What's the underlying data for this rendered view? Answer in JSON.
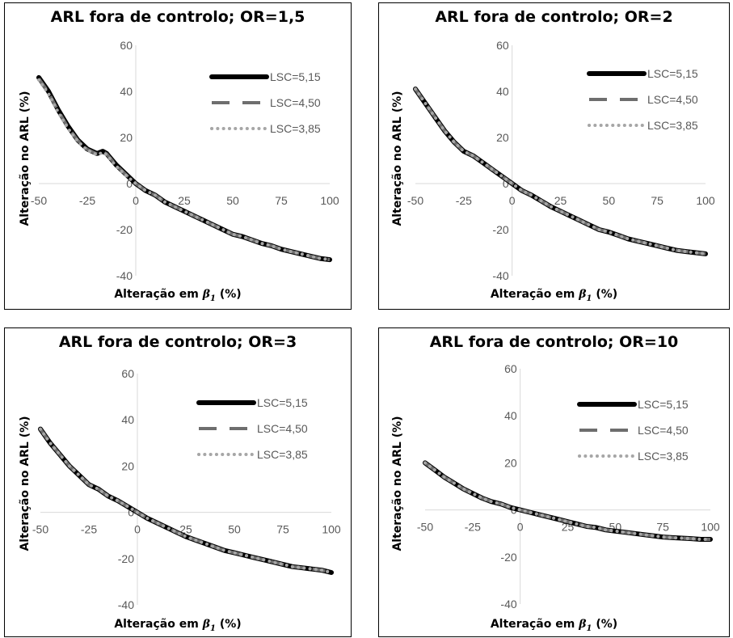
{
  "chart_data": [
    {
      "type": "line",
      "title": "ARL fora de controlo; OR=1,5",
      "xlabel": "Alteração em β1 (%)",
      "ylabel": "Alteração no ARL (%)",
      "xlim": [
        -50,
        100
      ],
      "ylim": [
        -40,
        60
      ],
      "x_ticks": [
        "-50",
        "-25",
        "0",
        "25",
        "50",
        "75",
        "100"
      ],
      "y_ticks": [
        "60",
        "40",
        "20",
        "0",
        "-20",
        "-40"
      ],
      "legend_position": "right",
      "x": [
        -50,
        -45,
        -40,
        -35,
        -30,
        -25,
        -20,
        -17,
        -15,
        -13,
        -10,
        -5,
        0,
        5,
        10,
        15,
        20,
        25,
        30,
        35,
        40,
        45,
        50,
        55,
        60,
        65,
        70,
        75,
        80,
        85,
        90,
        95,
        100
      ],
      "series": [
        {
          "name": "LSC=5,15",
          "values": [
            46,
            40,
            32,
            25,
            19,
            15,
            13,
            14,
            13,
            11,
            8,
            4,
            0,
            -3,
            -5,
            -8,
            -10,
            -12,
            -14,
            -16,
            -18,
            -20,
            -22,
            -23,
            -24.5,
            -26,
            -27,
            -28.5,
            -29.5,
            -30.5,
            -31.5,
            -32.5,
            -33
          ]
        },
        {
          "name": "LSC=4,50",
          "values": [
            45.5,
            39.5,
            31.5,
            24.5,
            18.8,
            14.8,
            12.8,
            13.8,
            12.8,
            10.8,
            7.8,
            3.8,
            0,
            -3,
            -5,
            -8,
            -10,
            -12,
            -14,
            -16,
            -18,
            -20,
            -22,
            -23,
            -24.5,
            -26,
            -27,
            -28.5,
            -29.5,
            -30.5,
            -31.5,
            -32.5,
            -33
          ]
        },
        {
          "name": "LSC=3,85",
          "values": [
            45,
            39,
            31,
            24,
            18.5,
            14.5,
            12.5,
            13.5,
            12.5,
            10.5,
            7.5,
            3.5,
            0,
            -3,
            -5,
            -8,
            -10,
            -12,
            -14,
            -16,
            -18,
            -20,
            -22,
            -23,
            -24.5,
            -26,
            -27,
            -28.5,
            -29.5,
            -30.5,
            -31.5,
            -32.5,
            -33
          ]
        }
      ]
    },
    {
      "type": "line",
      "title": "ARL fora de controlo; OR=2",
      "xlabel": "Alteração em β1 (%)",
      "ylabel": "Alteração no ARL (%)",
      "xlim": [
        -50,
        100
      ],
      "ylim": [
        -40,
        60
      ],
      "x_ticks": [
        "-50",
        "-25",
        "0",
        "25",
        "50",
        "75",
        "100"
      ],
      "y_ticks": [
        "60",
        "40",
        "20",
        "0",
        "-20",
        "-40"
      ],
      "legend_position": "right",
      "x": [
        -50,
        -45,
        -40,
        -35,
        -30,
        -25,
        -20,
        -15,
        -10,
        -5,
        0,
        5,
        10,
        15,
        20,
        25,
        30,
        35,
        40,
        45,
        50,
        55,
        60,
        65,
        70,
        75,
        80,
        85,
        90,
        95,
        100
      ],
      "series": [
        {
          "name": "LSC=5,15",
          "values": [
            41,
            35,
            29,
            23,
            18,
            14,
            12,
            9,
            6,
            3,
            0,
            -3,
            -5,
            -7.5,
            -10,
            -12,
            -14,
            -16,
            -18,
            -20,
            -21,
            -22.5,
            -24,
            -25,
            -26,
            -27,
            -28,
            -29,
            -29.5,
            -30,
            -30.5
          ]
        },
        {
          "name": "LSC=4,50",
          "values": [
            41,
            35,
            29,
            23,
            18,
            14,
            12,
            9,
            6,
            3,
            0,
            -3,
            -5,
            -7.5,
            -10,
            -12,
            -14,
            -16,
            -18,
            -20,
            -21,
            -22.5,
            -24,
            -25,
            -26,
            -27,
            -28,
            -29,
            -29.5,
            -30,
            -30.5
          ]
        },
        {
          "name": "LSC=3,85",
          "values": [
            41,
            35,
            29,
            23,
            18,
            14,
            12,
            9,
            6,
            3,
            0,
            -3,
            -5,
            -7.5,
            -10,
            -12,
            -14,
            -16,
            -18,
            -20,
            -21,
            -22.5,
            -24,
            -25,
            -26,
            -27,
            -28,
            -29,
            -29.5,
            -30,
            -30.5
          ]
        }
      ]
    },
    {
      "type": "line",
      "title": "ARL fora de controlo; OR=3",
      "xlabel": "Alteração em β1 (%)",
      "ylabel": "Alteração no ARL (%)",
      "xlim": [
        -50,
        100
      ],
      "ylim": [
        -40,
        60
      ],
      "x_ticks": [
        "-50",
        "-25",
        "0",
        "25",
        "50",
        "75",
        "100"
      ],
      "y_ticks": [
        "60",
        "40",
        "20",
        "0",
        "-20",
        "-40"
      ],
      "legend_position": "right",
      "x": [
        -50,
        -45,
        -40,
        -35,
        -30,
        -25,
        -20,
        -15,
        -10,
        -5,
        0,
        5,
        10,
        15,
        20,
        25,
        30,
        35,
        40,
        45,
        50,
        55,
        60,
        65,
        70,
        75,
        80,
        85,
        90,
        95,
        100
      ],
      "series": [
        {
          "name": "LSC=5,15",
          "values": [
            36,
            30,
            25,
            20,
            16,
            12,
            10,
            7,
            5,
            2.5,
            0,
            -2.5,
            -4.5,
            -6.5,
            -8.5,
            -10.5,
            -12,
            -13.5,
            -15,
            -16.5,
            -17.5,
            -18.5,
            -19.5,
            -20.5,
            -21.5,
            -22.5,
            -23.5,
            -24,
            -24.5,
            -25,
            -26
          ]
        },
        {
          "name": "LSC=4,50",
          "values": [
            36,
            30,
            25,
            20,
            16,
            12,
            10,
            7,
            5,
            2.5,
            0,
            -2.5,
            -4.5,
            -6.5,
            -8.5,
            -10.5,
            -12,
            -13.5,
            -15,
            -16.5,
            -17.5,
            -18.5,
            -19.5,
            -20.5,
            -21.5,
            -22.5,
            -23.5,
            -24,
            -24.5,
            -25,
            -26
          ]
        },
        {
          "name": "LSC=3,85",
          "values": [
            36,
            30,
            25,
            20,
            16,
            12,
            10,
            7,
            5,
            2.5,
            0,
            -2.5,
            -4.5,
            -6.5,
            -8.5,
            -10.5,
            -12,
            -13.5,
            -15,
            -16.5,
            -17.5,
            -18.5,
            -19.5,
            -20.5,
            -21.5,
            -22.5,
            -23.5,
            -24,
            -24.5,
            -25,
            -26
          ]
        }
      ]
    },
    {
      "type": "line",
      "title": "ARL fora de controlo; OR=10",
      "xlabel": "Alteração em β1 (%)",
      "ylabel": "Alteração no ARL (%)",
      "xlim": [
        -50,
        100
      ],
      "ylim": [
        -40,
        60
      ],
      "x_ticks": [
        "-50",
        "-25",
        "0",
        "25",
        "50",
        "75",
        "100"
      ],
      "y_ticks": [
        "60",
        "40",
        "20",
        "0",
        "-20",
        "-40"
      ],
      "legend_position": "right",
      "x": [
        -50,
        -45,
        -40,
        -35,
        -30,
        -25,
        -20,
        -15,
        -10,
        -5,
        0,
        5,
        10,
        15,
        20,
        25,
        30,
        35,
        40,
        45,
        50,
        55,
        60,
        65,
        70,
        75,
        80,
        85,
        90,
        95,
        100
      ],
      "series": [
        {
          "name": "LSC=5,15",
          "values": [
            20,
            17,
            14,
            11.5,
            9,
            7,
            5,
            3.5,
            2.5,
            1,
            0,
            -1,
            -2,
            -3,
            -4,
            -5,
            -6,
            -7,
            -7.5,
            -8.5,
            -9,
            -9.5,
            -10,
            -10.5,
            -11,
            -11.5,
            -11.8,
            -12,
            -12.2,
            -12.5,
            -12.5
          ]
        },
        {
          "name": "LSC=4,50",
          "values": [
            20,
            17,
            14,
            11.5,
            9,
            7,
            5,
            3.5,
            2.5,
            1,
            0,
            -1,
            -2,
            -3,
            -4,
            -5,
            -6,
            -7,
            -7.5,
            -8.5,
            -9,
            -9.5,
            -10,
            -10.5,
            -11,
            -11.5,
            -11.8,
            -12,
            -12.2,
            -12.5,
            -12.5
          ]
        },
        {
          "name": "LSC=3,85",
          "values": [
            20,
            17,
            14,
            11.5,
            9,
            7,
            5,
            3.5,
            2.5,
            1,
            0,
            -1,
            -2,
            -3,
            -4,
            -5,
            -6,
            -7,
            -7.5,
            -8.5,
            -9,
            -9.5,
            -10,
            -10.5,
            -11,
            -11.5,
            -11.8,
            -12,
            -12.2,
            -12.5,
            -12.5
          ]
        }
      ]
    }
  ],
  "series_styles": [
    {
      "color": "#000000",
      "dash": "solid"
    },
    {
      "color": "#6e6e6e",
      "dash": "dash"
    },
    {
      "color": "#a6a6a6",
      "dash": "dot"
    }
  ]
}
